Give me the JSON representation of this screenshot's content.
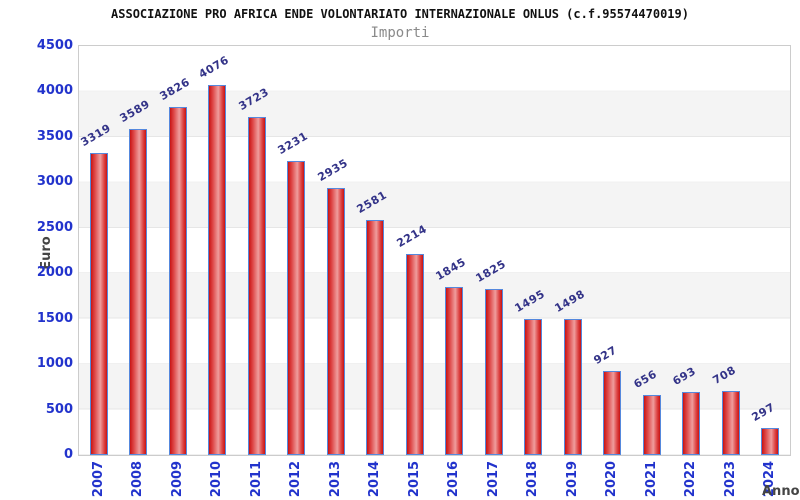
{
  "title": "ASSOCIAZIONE PRO AFRICA ENDE VOLONTARIATO INTERNAZIONALE ONLUS (c.f.95574470019)",
  "subtitle": "Importi",
  "chart_data": {
    "type": "bar",
    "title": "ASSOCIAZIONE PRO AFRICA ENDE VOLONTARIATO INTERNAZIONALE ONLUS (c.f.95574470019)",
    "subtitle": "Importi",
    "xlabel": "Anno",
    "ylabel": "Euro",
    "categories": [
      "2007",
      "2008",
      "2009",
      "2010",
      "2011",
      "2012",
      "2013",
      "2014",
      "2015",
      "2016",
      "2017",
      "2018",
      "2019",
      "2020",
      "2021",
      "2022",
      "2023",
      "2024"
    ],
    "values": [
      3319,
      3589,
      3826,
      4076,
      3723,
      3231,
      2935,
      2581,
      2214,
      1845,
      1825,
      1495,
      1498,
      927,
      656,
      693,
      708,
      297
    ],
    "ylim": [
      0,
      4500
    ],
    "ytick_step": 500,
    "yticks": [
      0,
      500,
      1000,
      1500,
      2000,
      2500,
      3000,
      3500,
      4000,
      4500
    ],
    "grid": true,
    "legend_position": "none",
    "band_colors": [
      "#ffffff",
      "#f4f4f4"
    ],
    "bar_fill_color": "#dd4343",
    "bar_border_color": "#5588dd",
    "value_label_color": "#333388",
    "axis_tick_label_color": "#2233cc",
    "axis_title_color": "#444444"
  }
}
